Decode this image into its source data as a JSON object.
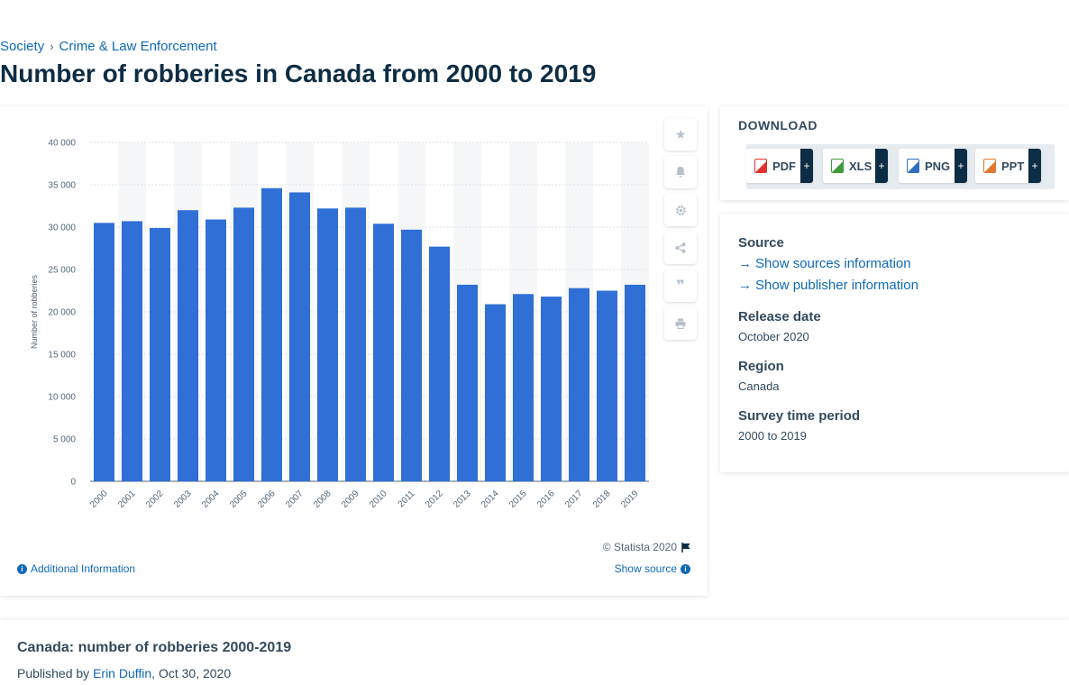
{
  "breadcrumb": {
    "items": [
      "Society",
      "Crime & Law Enforcement"
    ],
    "separator": "›"
  },
  "page_title": "Number of robberies in Canada from 2000 to 2019",
  "chart_tools": [
    "star-icon",
    "bell-icon",
    "gear-icon",
    "share-icon",
    "quote-icon",
    "print-icon"
  ],
  "chart_footer": {
    "copyright": "© Statista 2020",
    "additional_info": "Additional Information",
    "show_source": "Show source"
  },
  "download": {
    "title": "DOWNLOAD",
    "buttons": [
      {
        "label": "PDF",
        "icon": "pdf-file-icon",
        "color": "#e0332f"
      },
      {
        "label": "XLS",
        "icon": "xls-file-icon",
        "color": "#3f9b3b"
      },
      {
        "label": "PNG",
        "icon": "png-file-icon",
        "color": "#2f6fc2"
      },
      {
        "label": "PPT",
        "icon": "ppt-file-icon",
        "color": "#e2772f"
      }
    ],
    "plus": "+"
  },
  "meta": {
    "source_heading": "Source",
    "show_sources": "Show sources information",
    "show_publisher": "Show publisher information",
    "release_heading": "Release date",
    "release_value": "October 2020",
    "region_heading": "Region",
    "region_value": "Canada",
    "period_heading": "Survey time period",
    "period_value": "2000 to 2019"
  },
  "bottom": {
    "title": "Canada: number of robberies 2000-2019",
    "published_prefix": "Published by",
    "author": "Erin Duffin",
    "date": ", Oct 30, 2020"
  },
  "colors": {
    "bar": "#2f6fd6",
    "accent": "#0f69b8",
    "title": "#0d2d44"
  },
  "chart_data": {
    "type": "bar",
    "categories": [
      "2000",
      "2001",
      "2002",
      "2003",
      "2004",
      "2005",
      "2006",
      "2007",
      "2008",
      "2009",
      "2010",
      "2011",
      "2012",
      "2013",
      "2014",
      "2015",
      "2016",
      "2017",
      "2018",
      "2019"
    ],
    "values": [
      30500,
      30700,
      29900,
      32000,
      30900,
      32300,
      34600,
      34100,
      32200,
      32300,
      30400,
      29700,
      27700,
      23200,
      20900,
      22100,
      21800,
      22800,
      22500,
      23200
    ],
    "ylabel": "Number of robberies",
    "ylim": [
      0,
      40000
    ],
    "yticks": [
      0,
      5000,
      10000,
      15000,
      20000,
      25000,
      30000,
      35000,
      40000
    ],
    "ytick_labels": [
      "0",
      "5 000",
      "10 000",
      "15 000",
      "20 000",
      "25 000",
      "30 000",
      "35 000",
      "40 000"
    ],
    "grid": true,
    "legend": "none"
  }
}
